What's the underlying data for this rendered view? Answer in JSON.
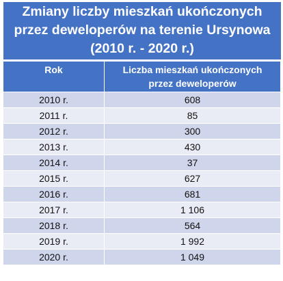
{
  "title": {
    "line1": "Zmiany liczby mieszkań ukończonych",
    "line2": "przez deweloperów na terenie Ursynowa",
    "line3": "(2010 r. - 2020 r.)"
  },
  "table": {
    "headers": {
      "year": "Rok",
      "count_line1": "Liczba mieszkań ukończonych",
      "count_line2": "przez deweloperów"
    },
    "rows": [
      {
        "year": "2010 r.",
        "count": "608"
      },
      {
        "year": "2011 r.",
        "count": "85"
      },
      {
        "year": "2012 r.",
        "count": "300"
      },
      {
        "year": "2013 r.",
        "count": "430"
      },
      {
        "year": "2014 r.",
        "count": "37"
      },
      {
        "year": "2015 r.",
        "count": "627"
      },
      {
        "year": "2016 r.",
        "count": "681"
      },
      {
        "year": "2017 r.",
        "count": "1 106"
      },
      {
        "year": "2018 r.",
        "count": "564"
      },
      {
        "year": "2019 r.",
        "count": "1 992"
      },
      {
        "year": "2020 r.",
        "count": "1 049"
      }
    ]
  },
  "colors": {
    "header_bg": "#4472c4",
    "row_dark": "#cfd5ea",
    "row_light": "#e9ebf5"
  }
}
